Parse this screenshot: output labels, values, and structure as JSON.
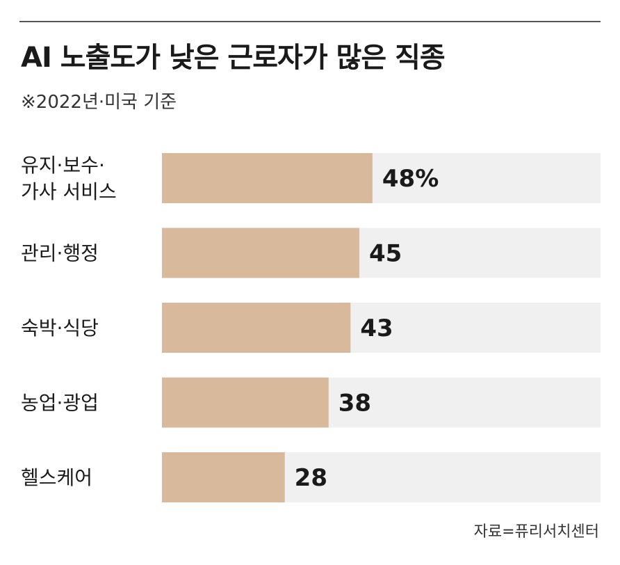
{
  "title": "AI 노출도가 낮은 근로자가 많은 직종",
  "subtitle": "※2022년·미국 기준",
  "source": "자료=퓨리서치센터",
  "colors": {
    "bar": "#d9b99b",
    "track": "#f0f0f0",
    "rule": "#555555",
    "text": "#1a1a1a"
  },
  "chart_data": {
    "type": "bar",
    "orientation": "horizontal",
    "categories": [
      [
        "유지·보수·",
        "가사 서비스"
      ],
      [
        "관리·행정"
      ],
      [
        "숙박·식당"
      ],
      [
        "농업·광업"
      ],
      [
        "헬스케어"
      ]
    ],
    "values": [
      48,
      45,
      43,
      38,
      28
    ],
    "value_labels": [
      "48%",
      "45",
      "43",
      "38",
      "28"
    ],
    "xlim": [
      0,
      100
    ],
    "grid": false,
    "legend": "none"
  }
}
